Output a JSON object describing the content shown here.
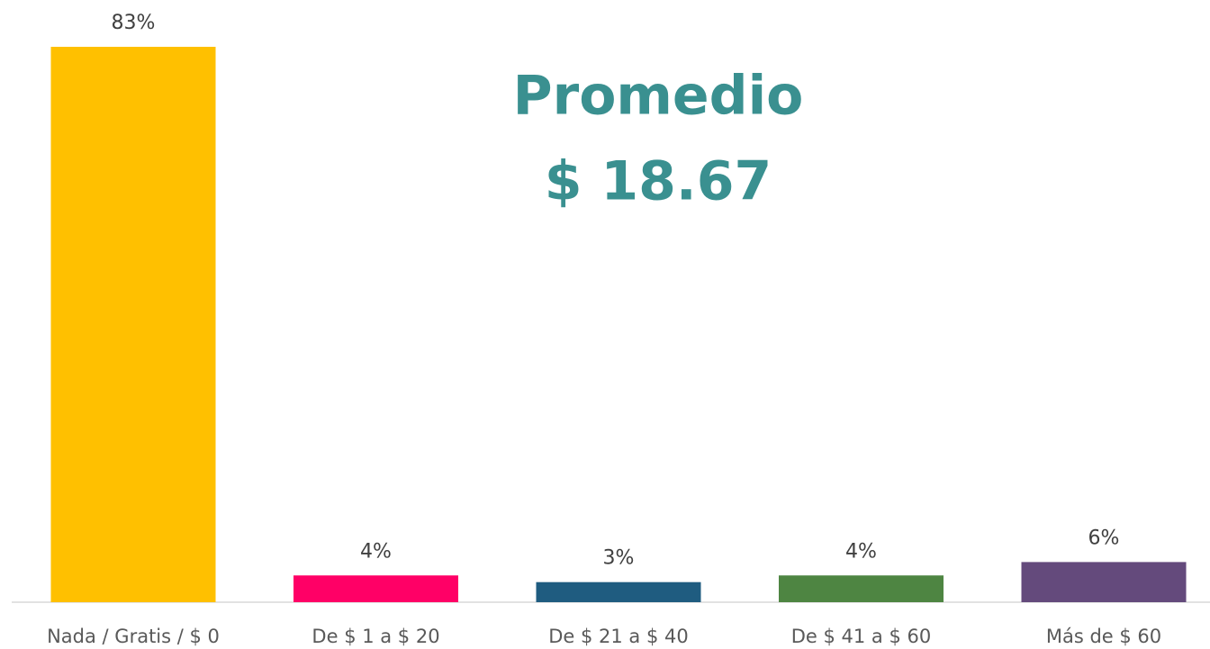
{
  "chart_data": {
    "type": "bar",
    "categories": [
      "Nada / Gratis / $ 0",
      "De $ 1 a $ 20",
      "De $ 21 a $ 40",
      "De $ 41 a $ 60",
      "Más de $ 60"
    ],
    "values": [
      83,
      4,
      3,
      4,
      6
    ],
    "value_labels": [
      "83%",
      "4%",
      "3%",
      "4%",
      "6%"
    ],
    "colors": [
      "#FFC000",
      "#FF0066",
      "#1F5C80",
      "#4E8542",
      "#644A7C"
    ],
    "annotations": [
      "Promedio",
      "$ 18.67"
    ]
  }
}
